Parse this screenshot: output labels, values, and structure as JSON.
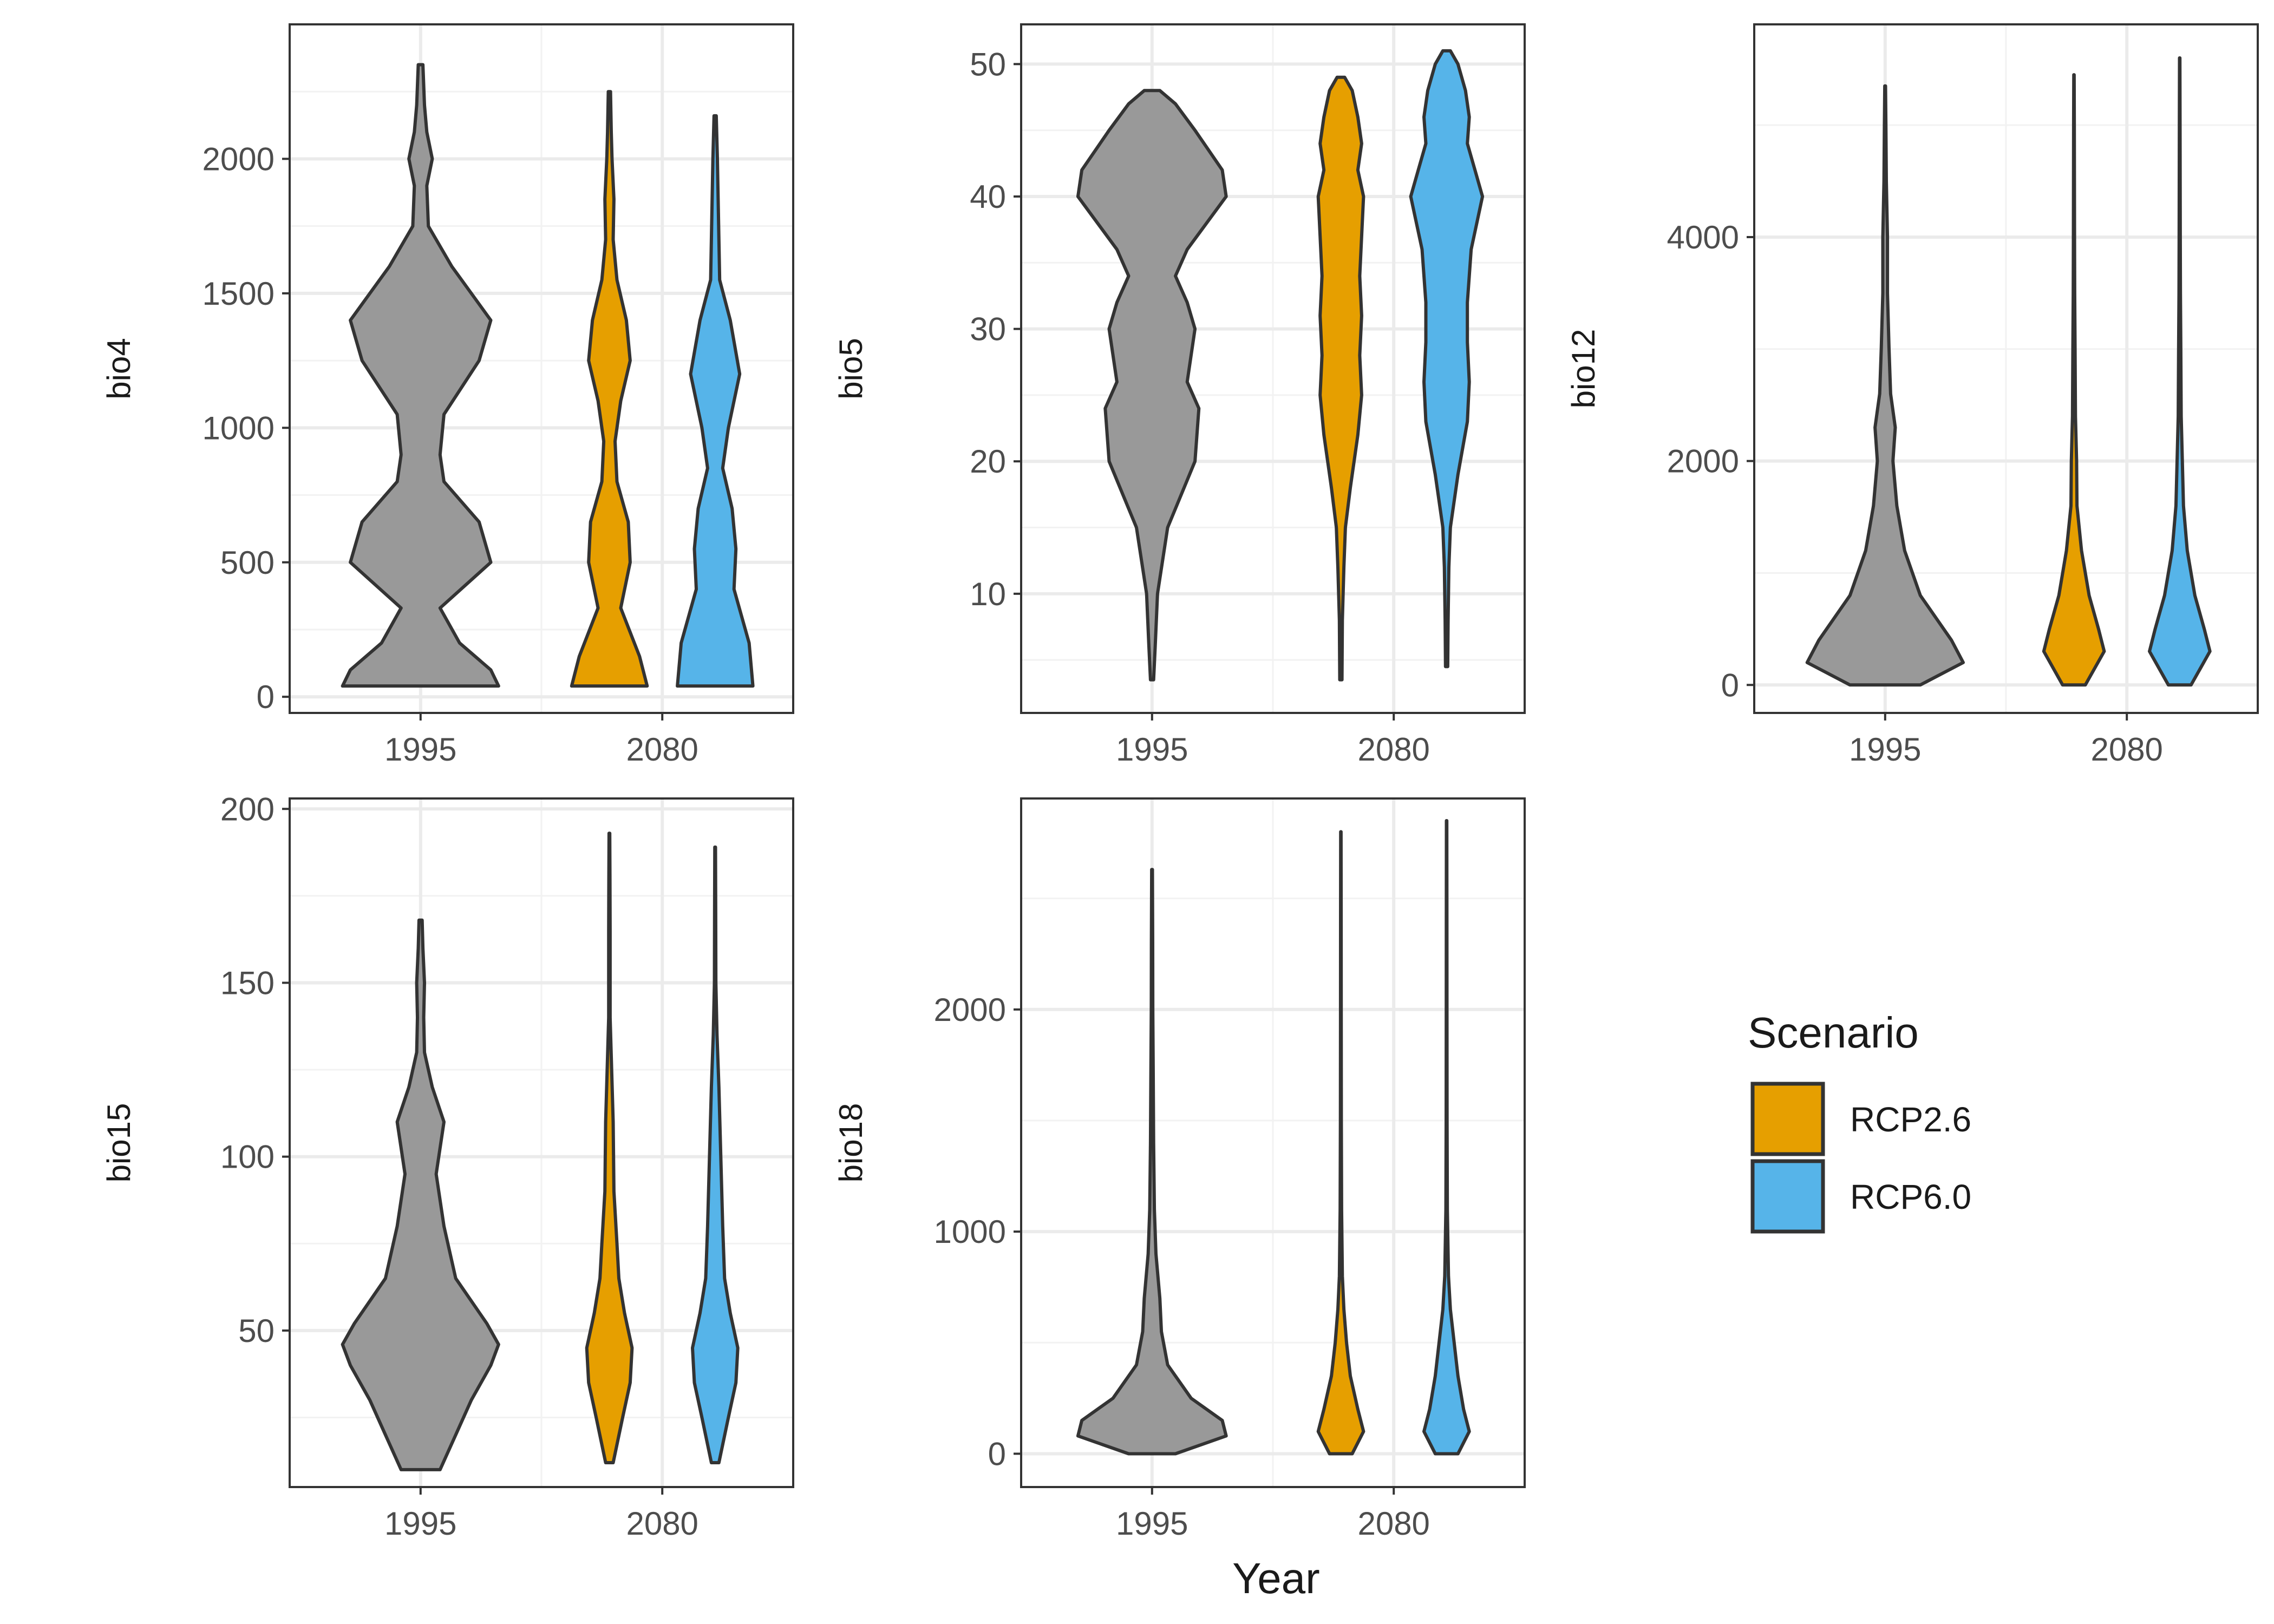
{
  "chart_data": {
    "type": "violin",
    "xlabel": "Year",
    "categories": [
      "1995",
      "2080"
    ],
    "legend": {
      "title": "Scenario",
      "position": "right",
      "entries": [
        {
          "label": "RCP2.6",
          "color": "#E69F00"
        },
        {
          "label": "RCP6.0",
          "color": "#56B4E9"
        }
      ]
    },
    "baseline_color": "#999999",
    "outline_color": "#333333",
    "panels": [
      {
        "ylabel": "bio4",
        "ylim": [
          -60,
          2500
        ],
        "yticks": [
          0,
          500,
          1000,
          1500,
          2000
        ],
        "violins": [
          {
            "group": "1995",
            "scenario": "baseline",
            "profile": [
              [
                40,
                1.0
              ],
              [
                100,
                0.9
              ],
              [
                200,
                0.5
              ],
              [
                330,
                0.25
              ],
              [
                500,
                0.9
              ],
              [
                650,
                0.75
              ],
              [
                800,
                0.3
              ],
              [
                900,
                0.25
              ],
              [
                1050,
                0.3
              ],
              [
                1250,
                0.75
              ],
              [
                1400,
                0.9
              ],
              [
                1600,
                0.4
              ],
              [
                1750,
                0.1
              ],
              [
                1900,
                0.08
              ],
              [
                2000,
                0.15
              ],
              [
                2100,
                0.08
              ],
              [
                2200,
                0.05
              ],
              [
                2350,
                0.03
              ]
            ]
          },
          {
            "group": "2080",
            "scenario": "RCP2.6",
            "profile": [
              [
                40,
                1.0
              ],
              [
                150,
                0.8
              ],
              [
                330,
                0.3
              ],
              [
                500,
                0.55
              ],
              [
                650,
                0.5
              ],
              [
                800,
                0.2
              ],
              [
                950,
                0.15
              ],
              [
                1100,
                0.3
              ],
              [
                1250,
                0.55
              ],
              [
                1400,
                0.45
              ],
              [
                1550,
                0.2
              ],
              [
                1700,
                0.1
              ],
              [
                1850,
                0.12
              ],
              [
                2000,
                0.07
              ],
              [
                2100,
                0.05
              ],
              [
                2250,
                0.03
              ]
            ]
          },
          {
            "group": "2080",
            "scenario": "RCP6.0",
            "profile": [
              [
                40,
                1.0
              ],
              [
                200,
                0.9
              ],
              [
                400,
                0.5
              ],
              [
                550,
                0.55
              ],
              [
                700,
                0.45
              ],
              [
                850,
                0.2
              ],
              [
                1000,
                0.35
              ],
              [
                1200,
                0.65
              ],
              [
                1400,
                0.4
              ],
              [
                1550,
                0.12
              ],
              [
                1700,
                0.1
              ],
              [
                1850,
                0.08
              ],
              [
                2000,
                0.06
              ],
              [
                2160,
                0.03
              ]
            ]
          }
        ]
      },
      {
        "ylabel": "bio5",
        "ylim": [
          1,
          53
        ],
        "yticks": [
          10,
          20,
          30,
          40,
          50
        ],
        "violins": [
          {
            "group": "1995",
            "scenario": "baseline",
            "profile": [
              [
                3.5,
                0.02
              ],
              [
                6,
                0.04
              ],
              [
                10,
                0.07
              ],
              [
                15,
                0.2
              ],
              [
                20,
                0.55
              ],
              [
                24,
                0.6
              ],
              [
                26,
                0.45
              ],
              [
                30,
                0.55
              ],
              [
                32,
                0.45
              ],
              [
                34,
                0.3
              ],
              [
                36,
                0.45
              ],
              [
                40,
                0.95
              ],
              [
                42,
                0.9
              ],
              [
                45,
                0.55
              ],
              [
                47,
                0.3
              ],
              [
                48,
                0.1
              ]
            ]
          },
          {
            "group": "2080",
            "scenario": "RCP2.6",
            "profile": [
              [
                3.5,
                0.03
              ],
              [
                8,
                0.04
              ],
              [
                12,
                0.08
              ],
              [
                15,
                0.12
              ],
              [
                18,
                0.25
              ],
              [
                22,
                0.45
              ],
              [
                25,
                0.55
              ],
              [
                28,
                0.5
              ],
              [
                31,
                0.55
              ],
              [
                34,
                0.5
              ],
              [
                37,
                0.55
              ],
              [
                40,
                0.6
              ],
              [
                42,
                0.45
              ],
              [
                44,
                0.55
              ],
              [
                46,
                0.45
              ],
              [
                48,
                0.3
              ],
              [
                49,
                0.1
              ]
            ]
          },
          {
            "group": "2080",
            "scenario": "RCP6.0",
            "profile": [
              [
                4.5,
                0.03
              ],
              [
                8,
                0.04
              ],
              [
                12,
                0.06
              ],
              [
                15,
                0.1
              ],
              [
                19,
                0.3
              ],
              [
                23,
                0.55
              ],
              [
                26,
                0.6
              ],
              [
                29,
                0.55
              ],
              [
                32,
                0.55
              ],
              [
                36,
                0.65
              ],
              [
                40,
                0.95
              ],
              [
                42,
                0.75
              ],
              [
                44,
                0.55
              ],
              [
                46,
                0.6
              ],
              [
                48,
                0.5
              ],
              [
                50,
                0.3
              ],
              [
                51,
                0.1
              ]
            ]
          }
        ]
      },
      {
        "ylabel": "bio12",
        "ylim": [
          -250,
          5900
        ],
        "yticks": [
          0,
          2000,
          4000
        ],
        "violins": [
          {
            "group": "1995",
            "scenario": "baseline",
            "profile": [
              [
                0,
                0.45
              ],
              [
                200,
                1.0
              ],
              [
                400,
                0.85
              ],
              [
                800,
                0.45
              ],
              [
                1200,
                0.25
              ],
              [
                1600,
                0.15
              ],
              [
                2000,
                0.1
              ],
              [
                2300,
                0.13
              ],
              [
                2600,
                0.07
              ],
              [
                3000,
                0.05
              ],
              [
                3500,
                0.03
              ],
              [
                4000,
                0.03
              ],
              [
                4500,
                0.015
              ],
              [
                5000,
                0.01
              ],
              [
                5350,
                0.005
              ]
            ]
          },
          {
            "group": "2080",
            "scenario": "RCP2.6",
            "profile": [
              [
                0,
                0.3
              ],
              [
                300,
                0.8
              ],
              [
                500,
                0.65
              ],
              [
                800,
                0.4
              ],
              [
                1200,
                0.2
              ],
              [
                1600,
                0.08
              ],
              [
                2000,
                0.07
              ],
              [
                2400,
                0.04
              ],
              [
                3000,
                0.03
              ],
              [
                3500,
                0.02
              ],
              [
                4000,
                0.015
              ],
              [
                5000,
                0.01
              ],
              [
                5450,
                0.005
              ]
            ]
          },
          {
            "group": "2080",
            "scenario": "RCP6.0",
            "profile": [
              [
                0,
                0.3
              ],
              [
                300,
                0.8
              ],
              [
                500,
                0.65
              ],
              [
                800,
                0.4
              ],
              [
                1200,
                0.2
              ],
              [
                1600,
                0.1
              ],
              [
                2000,
                0.07
              ],
              [
                2400,
                0.04
              ],
              [
                3000,
                0.03
              ],
              [
                3500,
                0.02
              ],
              [
                4000,
                0.015
              ],
              [
                5000,
                0.01
              ],
              [
                5600,
                0.005
              ]
            ]
          }
        ]
      },
      {
        "ylabel": "bio15",
        "ylim": [
          5,
          203
        ],
        "yticks": [
          50,
          100,
          150,
          200
        ],
        "violins": [
          {
            "group": "1995",
            "scenario": "baseline",
            "profile": [
              [
                10,
                0.25
              ],
              [
                20,
                0.45
              ],
              [
                30,
                0.65
              ],
              [
                40,
                0.9
              ],
              [
                46,
                1.0
              ],
              [
                52,
                0.85
              ],
              [
                65,
                0.45
              ],
              [
                80,
                0.3
              ],
              [
                95,
                0.2
              ],
              [
                110,
                0.3
              ],
              [
                120,
                0.15
              ],
              [
                130,
                0.05
              ],
              [
                140,
                0.04
              ],
              [
                150,
                0.05
              ],
              [
                160,
                0.03
              ],
              [
                168,
                0.02
              ]
            ]
          },
          {
            "group": "2080",
            "scenario": "RCP2.6",
            "profile": [
              [
                12,
                0.1
              ],
              [
                25,
                0.35
              ],
              [
                35,
                0.55
              ],
              [
                45,
                0.6
              ],
              [
                55,
                0.4
              ],
              [
                65,
                0.25
              ],
              [
                75,
                0.2
              ],
              [
                90,
                0.12
              ],
              [
                110,
                0.1
              ],
              [
                125,
                0.06
              ],
              [
                140,
                0.02
              ],
              [
                165,
                0.02
              ],
              [
                180,
                0.015
              ],
              [
                193,
                0.01
              ]
            ]
          },
          {
            "group": "2080",
            "scenario": "RCP6.0",
            "profile": [
              [
                12,
                0.1
              ],
              [
                25,
                0.35
              ],
              [
                35,
                0.55
              ],
              [
                45,
                0.6
              ],
              [
                55,
                0.4
              ],
              [
                65,
                0.25
              ],
              [
                80,
                0.2
              ],
              [
                100,
                0.15
              ],
              [
                120,
                0.1
              ],
              [
                135,
                0.05
              ],
              [
                150,
                0.02
              ],
              [
                170,
                0.015
              ],
              [
                189,
                0.01
              ]
            ]
          }
        ]
      },
      {
        "ylabel": "bio18",
        "ylim": [
          -150,
          2950
        ],
        "yticks": [
          0,
          1000,
          2000
        ],
        "violins": [
          {
            "group": "1995",
            "scenario": "baseline",
            "profile": [
              [
                0,
                0.3
              ],
              [
                80,
                0.95
              ],
              [
                150,
                0.9
              ],
              [
                250,
                0.5
              ],
              [
                400,
                0.2
              ],
              [
                550,
                0.12
              ],
              [
                700,
                0.1
              ],
              [
                900,
                0.05
              ],
              [
                1100,
                0.03
              ],
              [
                1400,
                0.02
              ],
              [
                1700,
                0.015
              ],
              [
                2000,
                0.01
              ],
              [
                2300,
                0.008
              ],
              [
                2630,
                0.005
              ]
            ]
          },
          {
            "group": "2080",
            "scenario": "RCP2.6",
            "profile": [
              [
                0,
                0.3
              ],
              [
                100,
                0.6
              ],
              [
                200,
                0.45
              ],
              [
                350,
                0.25
              ],
              [
                500,
                0.15
              ],
              [
                650,
                0.08
              ],
              [
                800,
                0.04
              ],
              [
                1100,
                0.02
              ],
              [
                1500,
                0.012
              ],
              [
                2000,
                0.01
              ],
              [
                2400,
                0.008
              ],
              [
                2800,
                0.005
              ]
            ]
          },
          {
            "group": "2080",
            "scenario": "RCP6.0",
            "profile": [
              [
                0,
                0.3
              ],
              [
                100,
                0.6
              ],
              [
                200,
                0.45
              ],
              [
                350,
                0.3
              ],
              [
                500,
                0.2
              ],
              [
                650,
                0.1
              ],
              [
                800,
                0.05
              ],
              [
                1100,
                0.02
              ],
              [
                1500,
                0.012
              ],
              [
                2000,
                0.01
              ],
              [
                2400,
                0.008
              ],
              [
                2850,
                0.005
              ]
            ]
          }
        ]
      }
    ]
  }
}
